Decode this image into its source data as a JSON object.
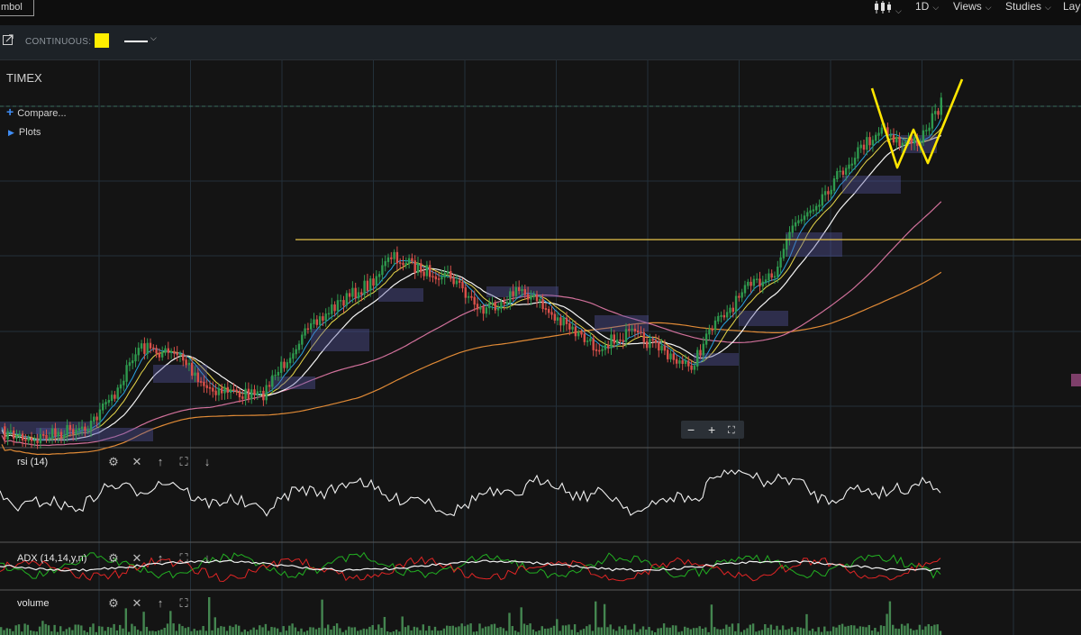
{
  "toolbar": {
    "symbol_label": "mbol",
    "icons": [
      "candlestick-chart-icon"
    ],
    "interval_label": "1D",
    "views_label": "Views",
    "studies_label": "Studies",
    "layout_label": "Lay"
  },
  "subbar": {
    "continuous_label": "CONTINUOUS:",
    "line_color": "#ffee00",
    "line_style_color": "#ffffff"
  },
  "main_pane": {
    "symbol": "TIMEX",
    "compare_label": "Compare...",
    "plots_label": "Plots",
    "zoom": {
      "minus": "−",
      "plus": "+",
      "fit": "⛶"
    }
  },
  "panes": {
    "rsi": {
      "label": "rsi (14)"
    },
    "adx": {
      "label": "ADX (14,14,y,n)"
    },
    "volume": {
      "label": "volume"
    }
  },
  "colors": {
    "background": "#141414",
    "grid": "#23303a",
    "up_candle": "#2e9a4e",
    "down_candle": "#d9504a",
    "ema_short": "#2aa3e0",
    "ema_mid": "#e8d84a",
    "ema_long": "#f5f5f5",
    "sma_pink": "#d0709a",
    "sma_orange": "#e08a36",
    "resistance_line": "#e6c34a",
    "w_pattern": "#ffe600",
    "adx_line": "#f2f2f2",
    "adx_plus_di": "#22b022",
    "adx_minus_di": "#e02525",
    "volume_bar": "#4c9a5a"
  }
}
